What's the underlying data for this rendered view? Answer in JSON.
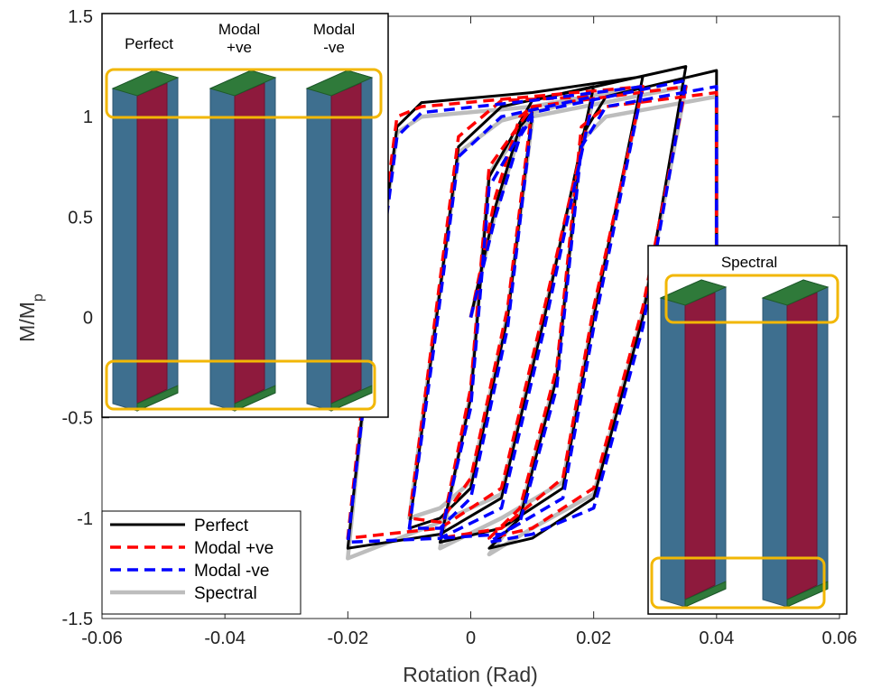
{
  "chart_data": {
    "type": "line",
    "x_label": "Rotation (Rad)",
    "y_label": "M/M",
    "y_label_subscript": "p",
    "x": [
      0,
      0.004,
      0.008,
      0.01,
      0.006,
      0.0,
      -0.005,
      -0.01,
      -0.006,
      -0.002,
      0.005,
      0.02,
      0.012,
      0.005,
      -0.005,
      -0.02,
      -0.016,
      -0.012,
      -0.008,
      0.01,
      0.028,
      0.02,
      0.015,
      0.005,
      -0.005,
      0.0,
      0.003,
      0.01,
      0.035,
      0.028,
      0.02,
      0.01,
      0.003,
      0.008,
      0.014,
      0.018,
      0.022,
      0.04,
      0.04
    ],
    "series": [
      {
        "name": "Perfect",
        "color": "#000000",
        "dash": false,
        "values": [
          0,
          0.55,
          0.95,
          1.02,
          0.0,
          -0.85,
          -1.0,
          -1.05,
          -0.1,
          0.85,
          1.05,
          1.15,
          0.0,
          -0.9,
          -1.08,
          -1.15,
          0.0,
          0.95,
          1.07,
          1.12,
          1.2,
          0.0,
          -0.85,
          -1.05,
          -1.12,
          -0.4,
          0.7,
          1.08,
          1.25,
          0.0,
          -0.9,
          -1.1,
          -1.15,
          -1.0,
          -0.3,
          0.9,
          1.1,
          1.23,
          0.4
        ]
      },
      {
        "name": "Modal +ve",
        "color": "#ff0000",
        "dash": true,
        "values": [
          0,
          0.6,
          1.0,
          1.05,
          0.05,
          -0.8,
          -1.02,
          -1.0,
          -0.05,
          0.9,
          1.08,
          1.1,
          0.05,
          -0.85,
          -1.05,
          -1.1,
          0.05,
          1.0,
          1.05,
          1.1,
          1.15,
          0.05,
          -0.8,
          -1.05,
          -1.1,
          -0.35,
          0.75,
          1.05,
          1.15,
          0.05,
          -0.85,
          -1.05,
          -1.1,
          -0.95,
          -0.25,
          0.95,
          1.05,
          1.12,
          0.35
        ]
      },
      {
        "name": "Modal -ve",
        "color": "#0000ff",
        "dash": true,
        "values": [
          0,
          0.5,
          0.9,
          1.0,
          -0.05,
          -0.9,
          -1.05,
          -1.05,
          -0.15,
          0.8,
          1.0,
          1.1,
          -0.05,
          -0.95,
          -1.1,
          -1.12,
          -0.05,
          0.9,
          1.02,
          1.08,
          1.15,
          -0.05,
          -0.9,
          -1.08,
          -1.1,
          -0.45,
          0.65,
          1.02,
          1.18,
          -0.05,
          -0.95,
          -1.08,
          -1.12,
          -1.02,
          -0.35,
          0.85,
          1.05,
          1.15,
          0.35
        ]
      },
      {
        "name": "Spectral",
        "color": "#bdbdbd",
        "dash": false,
        "values": [
          0,
          0.52,
          0.92,
          0.98,
          0.02,
          -0.82,
          -0.95,
          -1.0,
          -0.08,
          0.82,
          0.98,
          1.1,
          0.02,
          -0.88,
          -1.02,
          -1.2,
          0.02,
          0.92,
          1.0,
          1.05,
          1.15,
          0.02,
          -0.82,
          -1.0,
          -1.15,
          -0.38,
          0.72,
          1.0,
          1.15,
          0.02,
          -0.88,
          -1.05,
          -1.18,
          -0.98,
          -0.28,
          0.88,
          1.0,
          1.1,
          0.35
        ]
      }
    ],
    "draw_order": [
      3,
      0,
      1,
      2
    ],
    "xlim": [
      -0.06,
      0.06
    ],
    "ylim": [
      -1.5,
      1.5
    ],
    "xticks": [
      -0.06,
      -0.04,
      -0.02,
      0,
      0.02,
      0.04,
      0.06
    ],
    "yticks": [
      -1.5,
      -1,
      -0.5,
      0,
      0.5,
      1,
      1.5
    ],
    "grid": false,
    "legend": "lower left",
    "inset_labels": [
      [
        "Perfect"
      ],
      [
        "Modal",
        "+ve"
      ],
      [
        "Modal",
        "-ve"
      ],
      [
        "Spectral"
      ]
    ]
  }
}
